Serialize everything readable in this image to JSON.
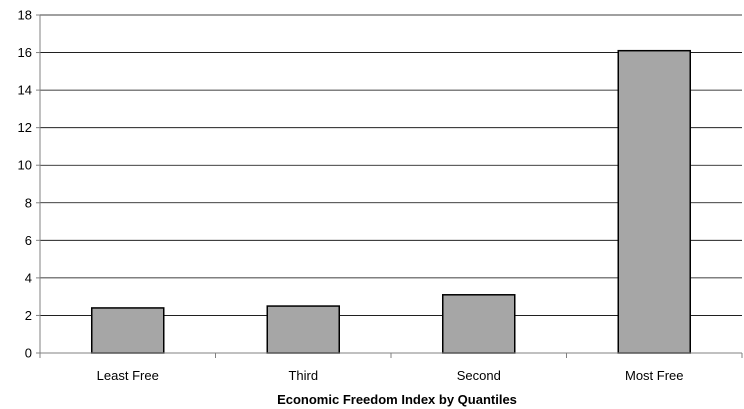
{
  "chart_data": {
    "type": "bar",
    "categories": [
      "Least Free",
      "Third",
      "Second",
      "Most Free"
    ],
    "values": [
      2.4,
      2.5,
      3.1,
      16.1
    ],
    "title": "",
    "xlabel": "Economic Freedom Index by Quantiles",
    "ylabel": "",
    "ylim": [
      0,
      18
    ],
    "yticks": [
      0,
      2,
      4,
      6,
      8,
      10,
      12,
      14,
      16,
      18
    ],
    "grid": true,
    "legend": "none",
    "colors": {
      "bar_fill": "#a6a6a6",
      "bar_stroke": "#000000",
      "grid": "#000000",
      "axis": "#808080"
    }
  }
}
